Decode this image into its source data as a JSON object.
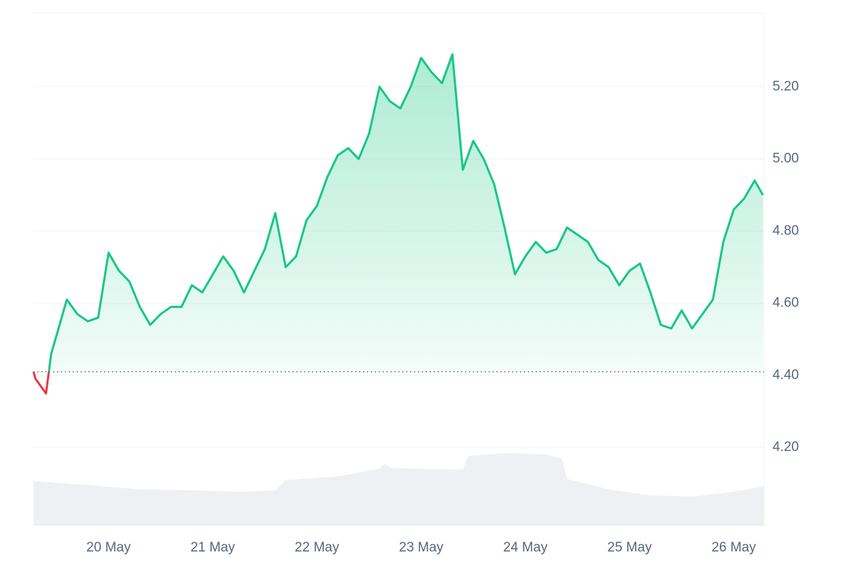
{
  "chart_data": {
    "type": "line",
    "xlim": [
      -0.72,
      6.29
    ],
    "xticks": [
      {
        "value": 0,
        "label": "20 May"
      },
      {
        "value": 1,
        "label": "21 May"
      },
      {
        "value": 2,
        "label": "22 May"
      },
      {
        "value": 3,
        "label": "23 May"
      },
      {
        "value": 4,
        "label": "24 May"
      },
      {
        "value": 5,
        "label": "25 May"
      },
      {
        "value": 6,
        "label": "26 May"
      }
    ],
    "ylim": [
      3.985,
      5.405
    ],
    "yticks": [
      {
        "value": 4.2,
        "label": "4.20"
      },
      {
        "value": 4.4,
        "label": "4.40"
      },
      {
        "value": 4.6,
        "label": "4.60"
      },
      {
        "value": 4.8,
        "label": "4.80"
      },
      {
        "value": 5.0,
        "label": "5.00"
      },
      {
        "value": 5.2,
        "label": "5.20"
      }
    ],
    "y2lim": [
      0,
      100
    ],
    "grid": true,
    "baseline": 4.41,
    "series": [
      {
        "color": "#16c784",
        "down_color": "#ea3943",
        "x": [
          -0.72,
          -0.7,
          -0.6,
          -0.55,
          -0.5,
          -0.4,
          -0.3,
          -0.2,
          -0.1,
          0,
          0.1,
          0.2,
          0.3,
          0.4,
          0.5,
          0.6,
          0.7,
          0.8,
          0.9,
          1.0,
          1.1,
          1.2,
          1.3,
          1.4,
          1.5,
          1.6,
          1.7,
          1.8,
          1.9,
          2.0,
          2.1,
          2.2,
          2.3,
          2.4,
          2.5,
          2.6,
          2.7,
          2.8,
          2.9,
          3.0,
          3.1,
          3.2,
          3.3,
          3.4,
          3.5,
          3.6,
          3.7,
          3.8,
          3.9,
          4.0,
          4.1,
          4.2,
          4.3,
          4.4,
          4.5,
          4.6,
          4.7,
          4.8,
          4.9,
          5.0,
          5.1,
          5.2,
          5.3,
          5.4,
          5.5,
          5.6,
          5.7,
          5.8,
          5.9,
          6.0,
          6.1,
          6.2,
          6.28
        ],
        "values": [
          4.41,
          4.39,
          4.35,
          4.46,
          4.51,
          4.61,
          4.57,
          4.55,
          4.56,
          4.74,
          4.69,
          4.66,
          4.59,
          4.54,
          4.57,
          4.59,
          4.59,
          4.65,
          4.63,
          4.68,
          4.73,
          4.69,
          4.63,
          4.69,
          4.75,
          4.85,
          4.7,
          4.73,
          4.83,
          4.87,
          4.95,
          5.01,
          5.03,
          5.0,
          5.07,
          5.2,
          5.16,
          5.14,
          5.2,
          5.28,
          5.24,
          5.21,
          5.29,
          4.97,
          5.05,
          5.0,
          4.93,
          4.81,
          4.68,
          4.73,
          4.77,
          4.74,
          4.75,
          4.81,
          4.79,
          4.77,
          4.72,
          4.7,
          4.65,
          4.69,
          4.71,
          4.63,
          4.54,
          4.53,
          4.58,
          4.53,
          4.57,
          4.61,
          4.77,
          4.86,
          4.89,
          4.94,
          4.9
        ]
      },
      {
        "color": "#eef0f4",
        "axis": "y2",
        "x": [
          -0.72,
          -0.2,
          0.3,
          0.8,
          1.3,
          1.6,
          1.7,
          2.2,
          2.6,
          2.65,
          2.7,
          3.2,
          3.4,
          3.45,
          3.8,
          4.2,
          4.35,
          4.4,
          4.8,
          5.2,
          5.6,
          6.0,
          6.29
        ],
        "values": [
          8.6,
          7.8,
          7.0,
          6.8,
          6.5,
          6.8,
          8.8,
          9.5,
          11.0,
          12.0,
          11.2,
          10.8,
          10.8,
          13.5,
          14.0,
          13.8,
          13.0,
          9.0,
          7.0,
          5.8,
          5.6,
          6.5,
          7.6
        ]
      }
    ]
  }
}
